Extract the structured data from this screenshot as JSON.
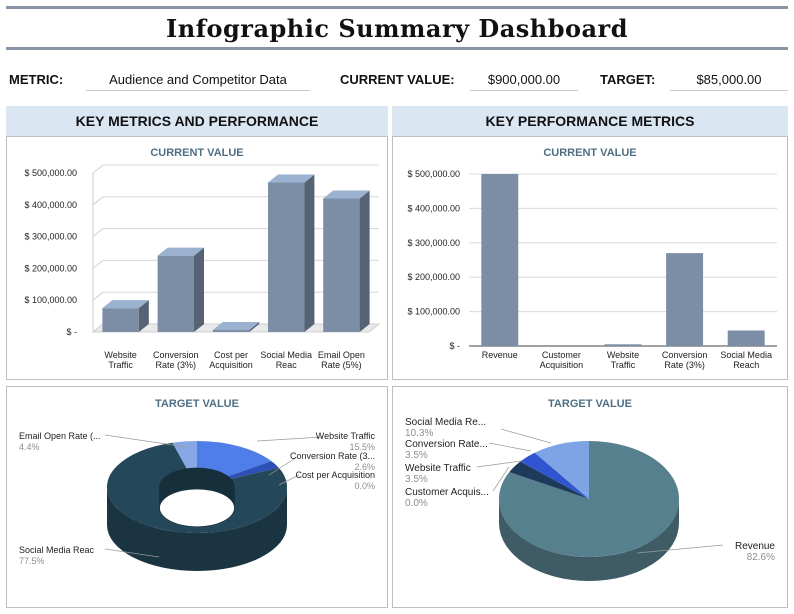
{
  "title": "Infographic Summary Dashboard",
  "metrics": {
    "metric_label": "METRIC:",
    "metric_value": "Audience and Competitor Data",
    "current_label": "CURRENT VALUE:",
    "current_value": "$900,000.00",
    "target_label": "TARGET:",
    "target_value": "$85,000.00"
  },
  "sections": {
    "left": "KEY METRICS AND PERFORMANCE",
    "right": "KEY PERFORMANCE METRICS"
  },
  "colors": {
    "bar": "#7b8ea6",
    "donut_dark": "#24485a",
    "donut_blue": "#4f7ee8",
    "donut_light": "#87a8e4",
    "pie_main": "#57808e",
    "pie_dark": "#1e3a5a",
    "pie_blue": "#2f55d0",
    "pie_light": "#7ea4e6",
    "panel_title": "#4e6f86"
  },
  "chart_data": [
    {
      "type": "bar",
      "title": "CURRENT VALUE",
      "categories": [
        "Website Traffic",
        "Conversion Rate (3%)",
        "Cost per Acquisition",
        "Social Media Reac",
        "Email Open Rate (5%)"
      ],
      "values": [
        75000,
        240000,
        0,
        470000,
        420000
      ],
      "yticks": [
        "$ 500,000.00",
        "$ 400,000.00",
        "$ 300,000.00",
        "$ 200,000.00",
        "$ 100,000.00",
        "$ -"
      ],
      "ylim": [
        0,
        500000
      ]
    },
    {
      "type": "bar",
      "title": "CURRENT VALUE",
      "categories": [
        "Revenue",
        "Customer Acquisition",
        "Website Traffic",
        "Conversion Rate (3%)",
        "Social Media Reach"
      ],
      "values": [
        500000,
        0,
        5000,
        270000,
        45000
      ],
      "yticks": [
        "$ 500,000.00",
        "$ 400,000.00",
        "$ 300,000.00",
        "$ 200,000.00",
        "$ 100,000.00",
        "$ -"
      ],
      "ylim": [
        0,
        500000
      ]
    },
    {
      "type": "pie",
      "title": "TARGET VALUE",
      "labels": [
        "Website Traffic",
        "Conversion Rate (3...",
        "Cost per Acquisition",
        "Social Media Reac",
        "Email Open Rate (..."
      ],
      "values": [
        15.5,
        2.6,
        0.0,
        77.5,
        4.4
      ],
      "percent_labels": [
        "15.5%",
        "2.6%",
        "0.0%",
        "77.5%",
        "4.4%"
      ]
    },
    {
      "type": "pie",
      "title": "TARGET VALUE",
      "labels": [
        "Revenue",
        "Customer Acquis...",
        "Website Traffic",
        "Conversion Rate...",
        "Social Media Re..."
      ],
      "values": [
        82.6,
        0.0,
        3.5,
        3.5,
        10.3
      ],
      "percent_labels": [
        "82.6%",
        "0.0%",
        "3.5%",
        "3.5%",
        "10.3%"
      ]
    }
  ]
}
